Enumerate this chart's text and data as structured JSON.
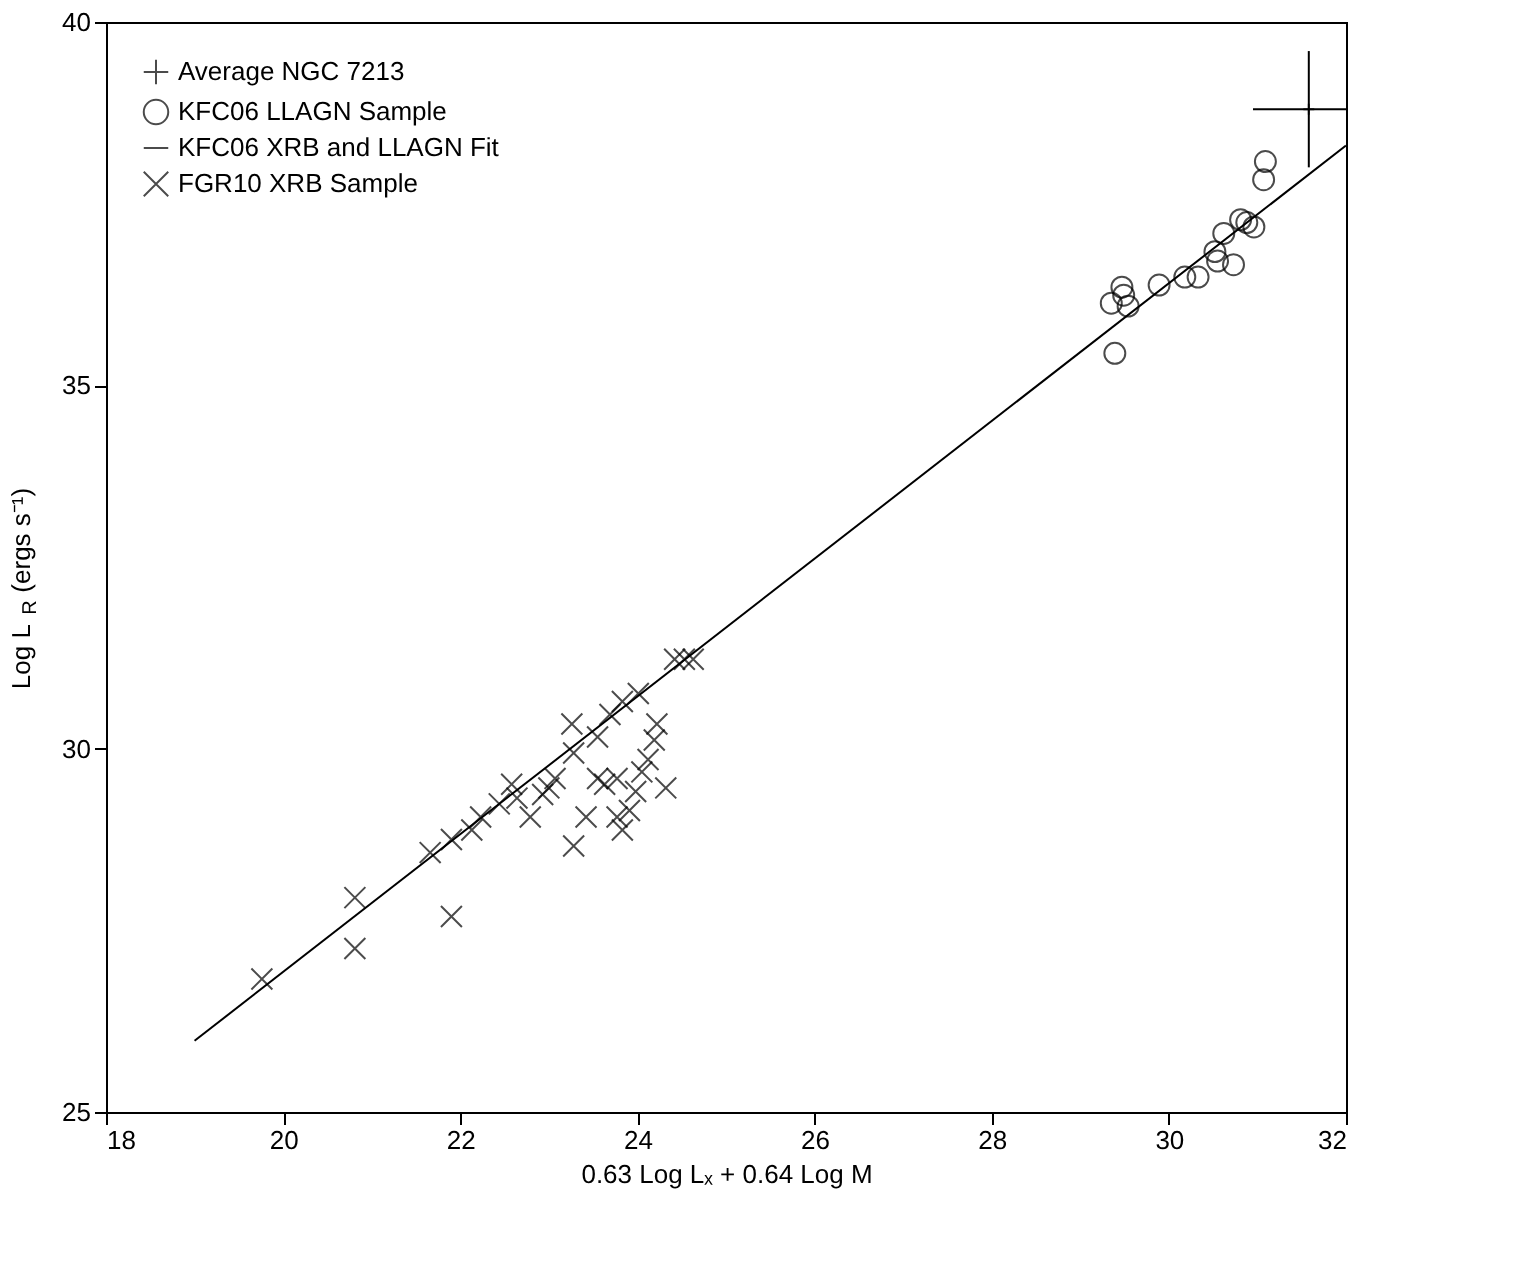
{
  "chart_data": {
    "type": "scatter",
    "xlabel": "0.63 Log Lₓ + 0.64 Log M",
    "ylabel": "Log L$_{R}$ (ergs s⁻¹)",
    "xlim": [
      18,
      32
    ],
    "ylim": [
      25,
      40
    ],
    "xticks": [
      18,
      20,
      22,
      24,
      26,
      28,
      30,
      32
    ],
    "yticks": [
      25,
      30,
      35,
      40
    ],
    "grid": false,
    "legend": "top left",
    "series": [
      {
        "name": "Average NGC 7213",
        "type": "scatter",
        "color": "#000000",
        "x": [
          31.58
        ],
        "values": [
          38.8
        ],
        "errors": [
          0.8
        ],
        "xerrors": [
          [
            30.95,
            32.0
          ]
        ]
      },
      {
        "name": "KFC06 LLAGN Sample",
        "type": "scatter",
        "marker": "circle",
        "color": "#000000",
        "x": [
          31.09,
          31.07,
          30.96,
          30.88,
          30.81,
          30.62,
          30.73,
          30.52,
          30.55,
          30.33,
          30.18,
          29.89,
          29.47,
          29.49,
          29.54,
          29.35,
          29.39
        ],
        "values": [
          38.08,
          37.83,
          37.18,
          37.24,
          37.28,
          37.09,
          36.66,
          36.84,
          36.71,
          36.49,
          36.49,
          36.38,
          36.35,
          36.24,
          36.09,
          36.13,
          35.44
        ]
      },
      {
        "name": "KFC06 XRB and LLAGN Fit",
        "type": "line",
        "marker": "none",
        "color": "#000000",
        "x": [
          19,
          32
        ],
        "values": [
          25.98,
          38.3
        ]
      },
      {
        "name": "FGR10 XRB Sample",
        "type": "scatter",
        "marker": "cross",
        "color": "#000000",
        "x": [
          19.76,
          20.81,
          20.81,
          21.9,
          21.66,
          21.9,
          22.13,
          22.23,
          22.44,
          22.64,
          22.93,
          23.0,
          23.07,
          23.28,
          23.26,
          23.55,
          23.69,
          23.83,
          24.01,
          24.53,
          24.42,
          24.63,
          22.58,
          22.79,
          23.28,
          23.42,
          23.63,
          23.77,
          23.83,
          23.77,
          23.91,
          24.05,
          24.12,
          24.19,
          24.22,
          24.32,
          23.98,
          23.55
        ],
        "values": [
          26.83,
          27.95,
          27.25,
          27.69,
          28.57,
          28.75,
          28.88,
          29.06,
          29.24,
          29.32,
          29.37,
          29.46,
          29.59,
          29.94,
          30.34,
          30.16,
          30.47,
          30.65,
          30.76,
          31.23,
          31.23,
          31.23,
          29.51,
          29.06,
          28.66,
          29.06,
          29.51,
          29.59,
          28.88,
          29.06,
          29.15,
          29.68,
          29.85,
          30.12,
          30.34,
          29.46,
          29.41,
          29.59
        ]
      }
    ]
  }
}
